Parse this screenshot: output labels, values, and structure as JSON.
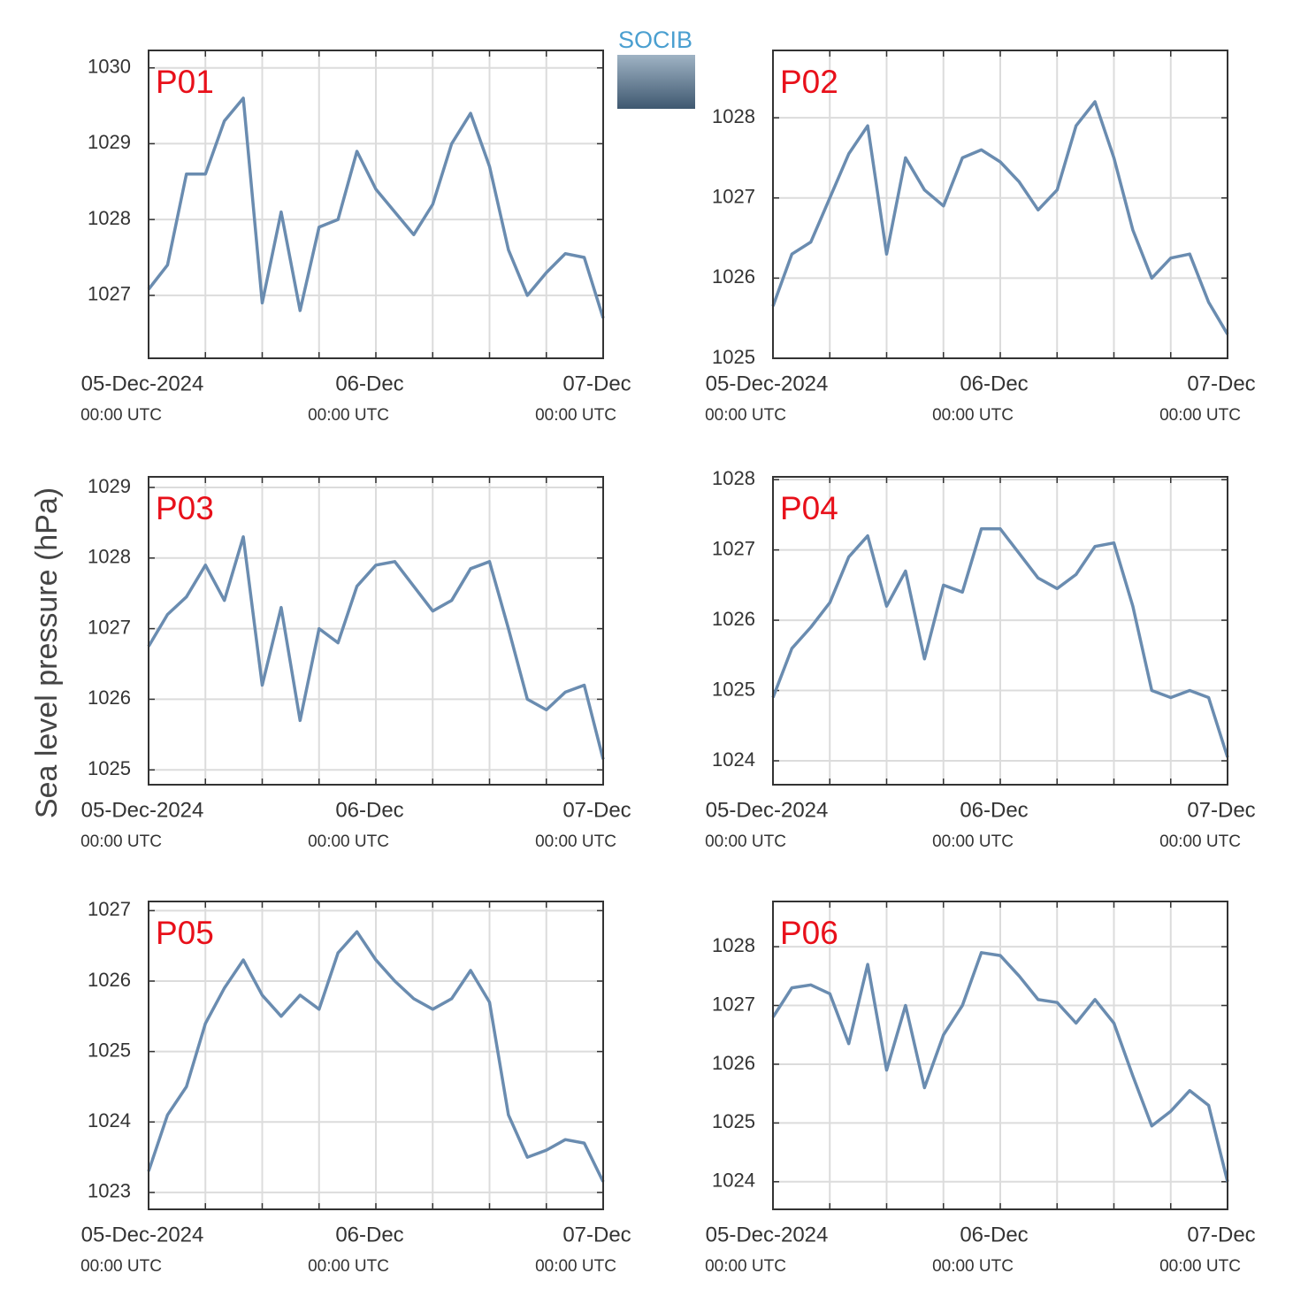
{
  "ylabel": "Sea level pressure (hPa)",
  "logo": "SOCIB",
  "chart_data": [
    {
      "type": "line",
      "title": "P01",
      "color": "#6a8cb0",
      "grid": true,
      "x": [
        "2024-12-05T00:00",
        "2024-12-05T02:00",
        "2024-12-05T04:00",
        "2024-12-05T06:00",
        "2024-12-05T08:00",
        "2024-12-05T10:00",
        "2024-12-05T12:00",
        "2024-12-05T14:00",
        "2024-12-05T16:00",
        "2024-12-05T18:00",
        "2024-12-05T20:00",
        "2024-12-05T22:00",
        "2024-12-06T00:00",
        "2024-12-06T02:00",
        "2024-12-06T04:00",
        "2024-12-06T06:00",
        "2024-12-06T08:00",
        "2024-12-06T10:00",
        "2024-12-06T12:00",
        "2024-12-06T14:00",
        "2024-12-06T16:00",
        "2024-12-06T18:00",
        "2024-12-06T20:00",
        "2024-12-06T22:00",
        "2024-12-07T00:00"
      ],
      "values": [
        1027.08,
        1027.4,
        1028.6,
        1028.6,
        1029.3,
        1029.6,
        1026.9,
        1028.1,
        1026.8,
        1027.9,
        1028.0,
        1028.9,
        1028.4,
        1028.1,
        1027.8,
        1028.2,
        1029.0,
        1029.4,
        1028.7,
        1027.6,
        1027.0,
        1027.3,
        1027.55,
        1027.5,
        1026.7
      ],
      "xlim": [
        "2024-12-05T00:00",
        "2024-12-07T00:00"
      ],
      "xticks": [
        {
          "value": "2024-12-05T00:00",
          "label": "05-Dec-2024",
          "sublabel": "00:00 UTC"
        },
        "2024-12-05T06:00",
        "2024-12-05T12:00",
        "2024-12-05T18:00",
        {
          "value": "2024-12-06T00:00",
          "label": "06-Dec",
          "sublabel": "00:00 UTC"
        },
        "2024-12-06T06:00",
        "2024-12-06T12:00",
        "2024-12-06T18:00",
        {
          "value": "2024-12-07T00:00",
          "label": "07-Dec",
          "sublabel": "00:00 UTC"
        }
      ],
      "ylim": [
        1026.17,
        1030.23
      ],
      "yticks": [
        1027,
        1028,
        1029,
        1030
      ]
    },
    {
      "type": "line",
      "title": "P02",
      "color": "#6a8cb0",
      "grid": true,
      "x": [
        "2024-12-05T00:00",
        "2024-12-05T02:00",
        "2024-12-05T04:00",
        "2024-12-05T06:00",
        "2024-12-05T08:00",
        "2024-12-05T10:00",
        "2024-12-05T12:00",
        "2024-12-05T14:00",
        "2024-12-05T16:00",
        "2024-12-05T18:00",
        "2024-12-05T20:00",
        "2024-12-05T22:00",
        "2024-12-06T00:00",
        "2024-12-06T02:00",
        "2024-12-06T04:00",
        "2024-12-06T06:00",
        "2024-12-06T08:00",
        "2024-12-06T10:00",
        "2024-12-06T12:00",
        "2024-12-06T14:00",
        "2024-12-06T16:00",
        "2024-12-06T18:00",
        "2024-12-06T20:00",
        "2024-12-06T22:00",
        "2024-12-07T00:00"
      ],
      "values": [
        1025.65,
        1026.3,
        1026.45,
        1027.0,
        1027.55,
        1027.9,
        1026.3,
        1027.5,
        1027.1,
        1026.9,
        1027.5,
        1027.6,
        1027.45,
        1027.2,
        1026.85,
        1027.1,
        1027.9,
        1028.2,
        1027.5,
        1026.6,
        1026.0,
        1026.25,
        1026.3,
        1025.7,
        1025.3
      ],
      "xlim": [
        "2024-12-05T00:00",
        "2024-12-07T00:00"
      ],
      "xticks": [
        {
          "value": "2024-12-05T00:00",
          "label": "05-Dec-2024",
          "sublabel": "00:00 UTC"
        },
        "2024-12-05T06:00",
        "2024-12-05T12:00",
        "2024-12-05T18:00",
        {
          "value": "2024-12-06T00:00",
          "label": "06-Dec",
          "sublabel": "00:00 UTC"
        },
        "2024-12-06T06:00",
        "2024-12-06T12:00",
        "2024-12-06T18:00",
        {
          "value": "2024-12-07T00:00",
          "label": "07-Dec",
          "sublabel": "00:00 UTC"
        }
      ],
      "ylim": [
        1025,
        1028.84
      ],
      "yticks": [
        1025,
        1026,
        1027,
        1028
      ]
    },
    {
      "type": "line",
      "title": "P03",
      "color": "#6a8cb0",
      "grid": true,
      "x": [
        "2024-12-05T00:00",
        "2024-12-05T02:00",
        "2024-12-05T04:00",
        "2024-12-05T06:00",
        "2024-12-05T08:00",
        "2024-12-05T10:00",
        "2024-12-05T12:00",
        "2024-12-05T14:00",
        "2024-12-05T16:00",
        "2024-12-05T18:00",
        "2024-12-05T20:00",
        "2024-12-05T22:00",
        "2024-12-06T00:00",
        "2024-12-06T02:00",
        "2024-12-06T04:00",
        "2024-12-06T06:00",
        "2024-12-06T08:00",
        "2024-12-06T10:00",
        "2024-12-06T12:00",
        "2024-12-06T14:00",
        "2024-12-06T16:00",
        "2024-12-06T18:00",
        "2024-12-06T20:00",
        "2024-12-06T22:00",
        "2024-12-07T00:00"
      ],
      "values": [
        1026.75,
        1027.2,
        1027.45,
        1027.9,
        1027.4,
        1028.3,
        1026.2,
        1027.3,
        1025.7,
        1027.0,
        1026.8,
        1027.6,
        1027.9,
        1027.95,
        1027.6,
        1027.25,
        1027.4,
        1027.85,
        1027.95,
        1027.0,
        1026.0,
        1025.85,
        1026.1,
        1026.2,
        1025.15
      ],
      "xlim": [
        "2024-12-05T00:00",
        "2024-12-07T00:00"
      ],
      "xticks": [
        {
          "value": "2024-12-05T00:00",
          "label": "05-Dec-2024",
          "sublabel": "00:00 UTC"
        },
        "2024-12-05T06:00",
        "2024-12-05T12:00",
        "2024-12-05T18:00",
        {
          "value": "2024-12-06T00:00",
          "label": "06-Dec",
          "sublabel": "00:00 UTC"
        },
        "2024-12-06T06:00",
        "2024-12-06T12:00",
        "2024-12-06T18:00",
        {
          "value": "2024-12-07T00:00",
          "label": "07-Dec",
          "sublabel": "00:00 UTC"
        }
      ],
      "ylim": [
        1024.79,
        1029.15
      ],
      "yticks": [
        1025,
        1026,
        1027,
        1028,
        1029
      ]
    },
    {
      "type": "line",
      "title": "P04",
      "color": "#6a8cb0",
      "grid": true,
      "x": [
        "2024-12-05T00:00",
        "2024-12-05T02:00",
        "2024-12-05T04:00",
        "2024-12-05T06:00",
        "2024-12-05T08:00",
        "2024-12-05T10:00",
        "2024-12-05T12:00",
        "2024-12-05T14:00",
        "2024-12-05T16:00",
        "2024-12-05T18:00",
        "2024-12-05T20:00",
        "2024-12-05T22:00",
        "2024-12-06T00:00",
        "2024-12-06T02:00",
        "2024-12-06T04:00",
        "2024-12-06T06:00",
        "2024-12-06T08:00",
        "2024-12-06T10:00",
        "2024-12-06T12:00",
        "2024-12-06T14:00",
        "2024-12-06T16:00",
        "2024-12-06T18:00",
        "2024-12-06T20:00",
        "2024-12-06T22:00",
        "2024-12-07T00:00"
      ],
      "values": [
        1024.9,
        1025.6,
        1025.9,
        1026.25,
        1026.9,
        1027.2,
        1026.2,
        1026.7,
        1025.45,
        1026.5,
        1026.4,
        1027.3,
        1027.3,
        1026.95,
        1026.6,
        1026.45,
        1026.65,
        1027.05,
        1027.1,
        1026.2,
        1025.0,
        1024.9,
        1025.0,
        1024.9,
        1024.05
      ],
      "xlim": [
        "2024-12-05T00:00",
        "2024-12-07T00:00"
      ],
      "xticks": [
        {
          "value": "2024-12-05T00:00",
          "label": "05-Dec-2024",
          "sublabel": "00:00 UTC"
        },
        "2024-12-05T06:00",
        "2024-12-05T12:00",
        "2024-12-05T18:00",
        {
          "value": "2024-12-06T00:00",
          "label": "06-Dec",
          "sublabel": "00:00 UTC"
        },
        "2024-12-06T06:00",
        "2024-12-06T12:00",
        "2024-12-06T18:00",
        {
          "value": "2024-12-07T00:00",
          "label": "07-Dec",
          "sublabel": "00:00 UTC"
        }
      ],
      "ylim": [
        1023.66,
        1028.04
      ],
      "yticks": [
        1024,
        1025,
        1026,
        1027,
        1028
      ]
    },
    {
      "type": "line",
      "title": "P05",
      "color": "#6a8cb0",
      "grid": true,
      "x": [
        "2024-12-05T00:00",
        "2024-12-05T02:00",
        "2024-12-05T04:00",
        "2024-12-05T06:00",
        "2024-12-05T08:00",
        "2024-12-05T10:00",
        "2024-12-05T12:00",
        "2024-12-05T14:00",
        "2024-12-05T16:00",
        "2024-12-05T18:00",
        "2024-12-05T20:00",
        "2024-12-05T22:00",
        "2024-12-06T00:00",
        "2024-12-06T02:00",
        "2024-12-06T04:00",
        "2024-12-06T06:00",
        "2024-12-06T08:00",
        "2024-12-06T10:00",
        "2024-12-06T12:00",
        "2024-12-06T14:00",
        "2024-12-06T16:00",
        "2024-12-06T18:00",
        "2024-12-06T20:00",
        "2024-12-06T22:00",
        "2024-12-07T00:00"
      ],
      "values": [
        1023.3,
        1024.1,
        1024.5,
        1025.4,
        1025.9,
        1026.3,
        1025.8,
        1025.5,
        1025.8,
        1025.6,
        1026.4,
        1026.7,
        1026.3,
        1026.0,
        1025.75,
        1025.6,
        1025.75,
        1026.15,
        1025.7,
        1024.1,
        1023.5,
        1023.6,
        1023.75,
        1023.7,
        1023.15
      ],
      "xlim": [
        "2024-12-05T00:00",
        "2024-12-07T00:00"
      ],
      "xticks": [
        {
          "value": "2024-12-05T00:00",
          "label": "05-Dec-2024",
          "sublabel": "00:00 UTC"
        },
        "2024-12-05T06:00",
        "2024-12-05T12:00",
        "2024-12-05T18:00",
        {
          "value": "2024-12-06T00:00",
          "label": "06-Dec",
          "sublabel": "00:00 UTC"
        },
        "2024-12-06T06:00",
        "2024-12-06T12:00",
        "2024-12-06T18:00",
        {
          "value": "2024-12-07T00:00",
          "label": "07-Dec",
          "sublabel": "00:00 UTC"
        }
      ],
      "ylim": [
        1022.76,
        1027.13
      ],
      "yticks": [
        1023,
        1024,
        1025,
        1026,
        1027
      ]
    },
    {
      "type": "line",
      "title": "P06",
      "color": "#6a8cb0",
      "grid": true,
      "x": [
        "2024-12-05T00:00",
        "2024-12-05T02:00",
        "2024-12-05T04:00",
        "2024-12-05T06:00",
        "2024-12-05T08:00",
        "2024-12-05T10:00",
        "2024-12-05T12:00",
        "2024-12-05T14:00",
        "2024-12-05T16:00",
        "2024-12-05T18:00",
        "2024-12-05T20:00",
        "2024-12-05T22:00",
        "2024-12-06T00:00",
        "2024-12-06T02:00",
        "2024-12-06T04:00",
        "2024-12-06T06:00",
        "2024-12-06T08:00",
        "2024-12-06T10:00",
        "2024-12-06T12:00",
        "2024-12-06T14:00",
        "2024-12-06T16:00",
        "2024-12-06T18:00",
        "2024-12-06T20:00",
        "2024-12-06T22:00",
        "2024-12-07T00:00"
      ],
      "values": [
        1026.8,
        1027.3,
        1027.35,
        1027.2,
        1026.35,
        1027.7,
        1025.9,
        1027.0,
        1025.6,
        1026.5,
        1027.0,
        1027.9,
        1027.85,
        1027.5,
        1027.1,
        1027.05,
        1026.7,
        1027.1,
        1026.7,
        1025.8,
        1024.95,
        1025.2,
        1025.55,
        1025.3,
        1024.0
      ],
      "xlim": [
        "2024-12-05T00:00",
        "2024-12-07T00:00"
      ],
      "xticks": [
        {
          "value": "2024-12-05T00:00",
          "label": "05-Dec-2024",
          "sublabel": "00:00 UTC"
        },
        "2024-12-05T06:00",
        "2024-12-05T12:00",
        "2024-12-05T18:00",
        {
          "value": "2024-12-06T00:00",
          "label": "06-Dec",
          "sublabel": "00:00 UTC"
        },
        "2024-12-06T06:00",
        "2024-12-06T12:00",
        "2024-12-06T18:00",
        {
          "value": "2024-12-07T00:00",
          "label": "07-Dec",
          "sublabel": "00:00 UTC"
        }
      ],
      "ylim": [
        1023.53,
        1028.77
      ],
      "yticks": [
        1024,
        1025,
        1026,
        1027,
        1028
      ]
    }
  ]
}
